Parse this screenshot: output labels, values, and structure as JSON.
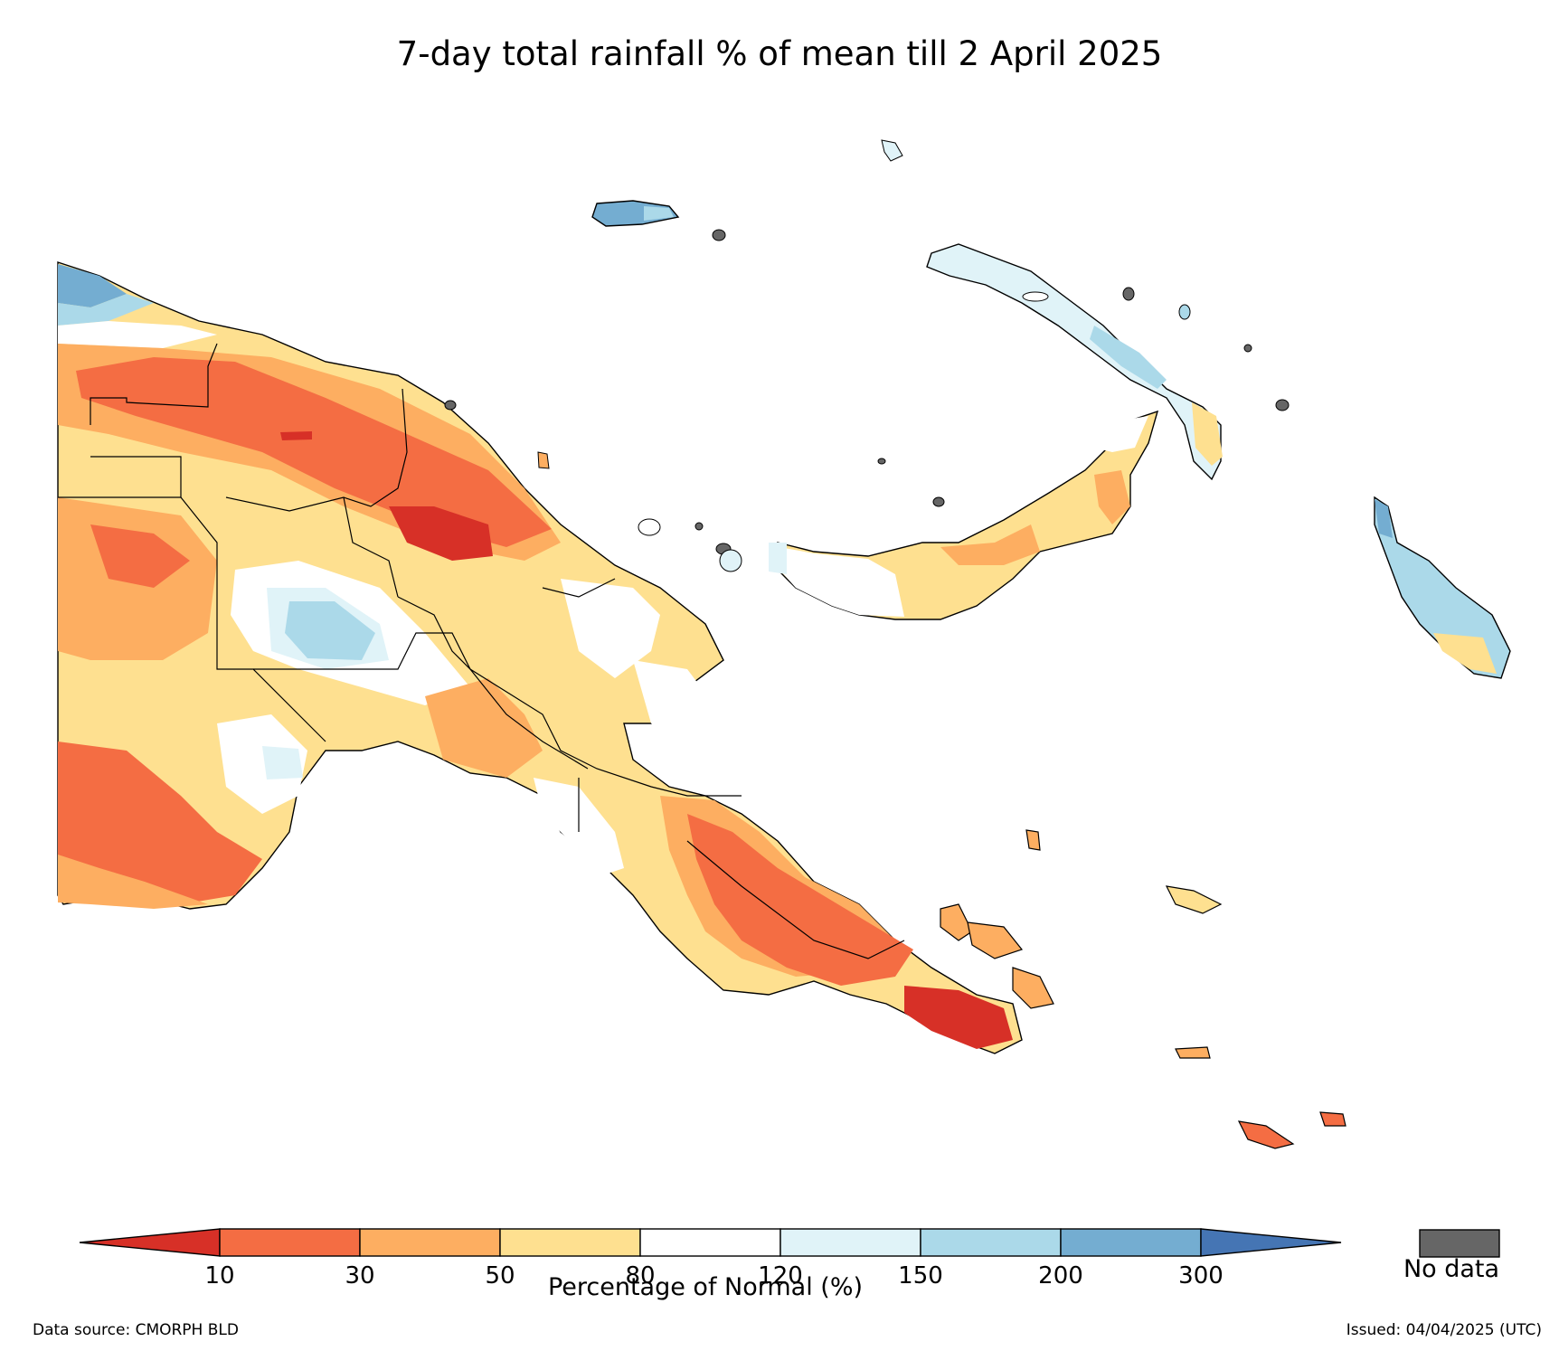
{
  "title": "7-day total rainfall % of mean till 2 April 2025",
  "colorbar": {
    "title": "Percentage of Normal (%)",
    "ticks": [
      "10",
      "30",
      "50",
      "80",
      "120",
      "150",
      "200",
      "300"
    ],
    "colors": [
      "#d73027",
      "#f46d43",
      "#fdae61",
      "#fee090",
      "#ffffff",
      "#e0f3f8",
      "#abd9e9",
      "#74add1",
      "#4575b4"
    ],
    "no_data_label": "No data",
    "no_data_color": "#666666"
  },
  "footer": {
    "source": "Data source: CMORPH BLD",
    "issued": "Issued: 04/04/2025 (UTC)"
  }
}
